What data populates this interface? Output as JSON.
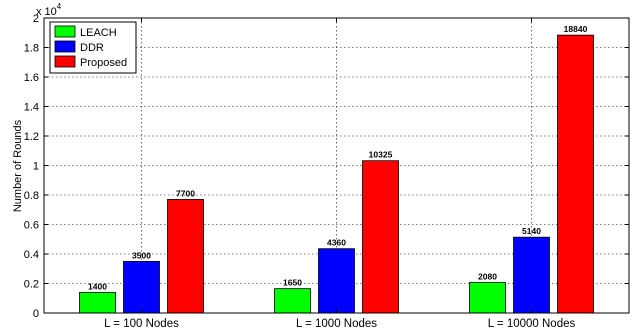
{
  "chart_data": {
    "type": "bar",
    "categories": [
      "L = 100 Nodes",
      "L = 1000 Nodes",
      "L = 10000 Nodes"
    ],
    "series": [
      {
        "name": "LEACH",
        "color": "#00ff00",
        "values": [
          1400,
          1650,
          2080
        ],
        "labels": [
          "1400",
          "1650",
          "2080"
        ]
      },
      {
        "name": "DDR",
        "color": "#0000ff",
        "values": [
          3500,
          4360,
          5140
        ],
        "labels": [
          "3500",
          "4360",
          "5140"
        ]
      },
      {
        "name": "Proposed",
        "color": "#ff0000",
        "values": [
          7700,
          10325,
          18840
        ],
        "labels": [
          "7700",
          "10325",
          "18840"
        ]
      }
    ],
    "title": "",
    "xlabel": "",
    "ylabel": "Number of Rounds",
    "ylim": [
      0,
      20000
    ],
    "yticks": [
      0,
      2000,
      4000,
      6000,
      8000,
      10000,
      12000,
      14000,
      16000,
      18000,
      20000
    ],
    "ytick_labels": [
      "0",
      "0.2",
      "0.4",
      "0.6",
      "0.8",
      "1",
      "1.2",
      "1.4",
      "1.6",
      "1.8",
      "2"
    ],
    "scale_label": {
      "base": "x 10",
      "exponent": "4"
    },
    "grid": true,
    "grid_style": "dotted",
    "legend_position": "top-left"
  }
}
